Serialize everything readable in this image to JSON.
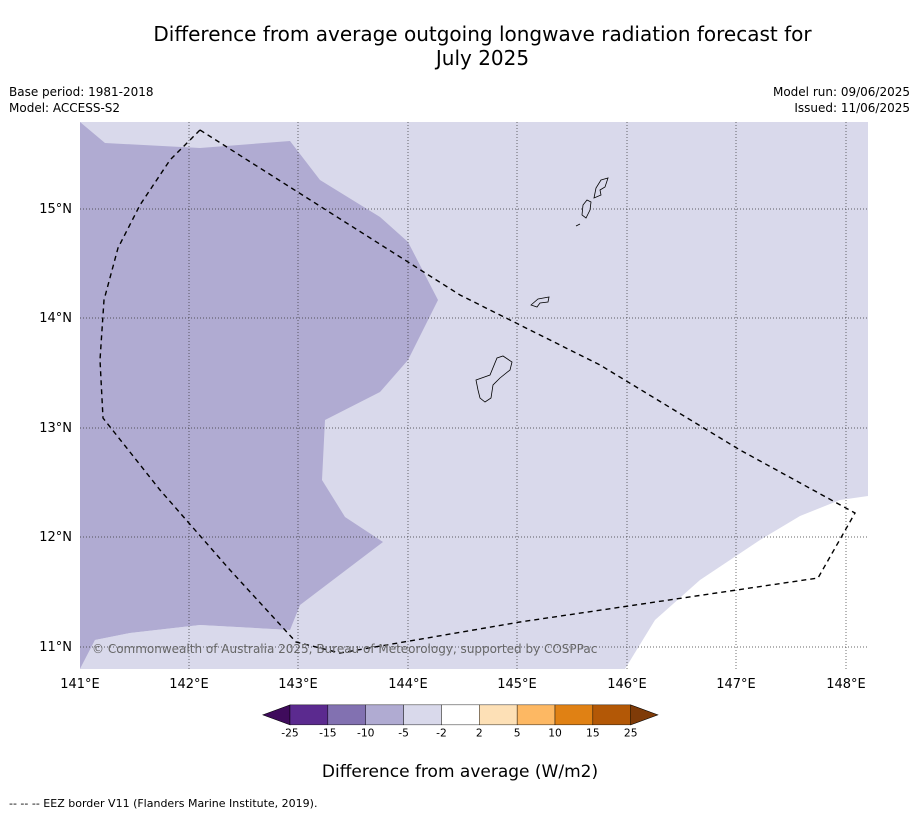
{
  "title_line1": "Difference from average outgoing longwave radiation forecast for",
  "title_line2": "July 2025",
  "base_period": "Base period: 1981-2018",
  "model": "Model: ACCESS-S2",
  "model_run": "Model run: 09/06/2025",
  "issued": "Issued: 11/06/2025",
  "copyright": "© Commonwealth of Australia 2025, Bureau of Meteorology, supported by COSPPac",
  "lon_labels": [
    "141°E",
    "142°E",
    "143°E",
    "144°E",
    "145°E",
    "146°E",
    "147°E",
    "148°E"
  ],
  "lat_labels": [
    "15°N",
    "14°N",
    "13°N",
    "12°N",
    "11°N"
  ],
  "colorbar": {
    "ticks": [
      "-25",
      "-15",
      "-10",
      "-5",
      "-2",
      "2",
      "5",
      "10",
      "15",
      "25"
    ],
    "colors": [
      "#3f0b5c",
      "#5b2a8f",
      "#8271b1",
      "#b0abd2",
      "#d9d9eb",
      "#ffffff",
      "#fde0b6",
      "#fdb863",
      "#e08114",
      "#b35806",
      "#7f3b08"
    ],
    "label": "Difference from average (W/m2)"
  },
  "footnote": "--  --  -- EEZ border V11 (Flanders Marine Institute, 2019)."
}
